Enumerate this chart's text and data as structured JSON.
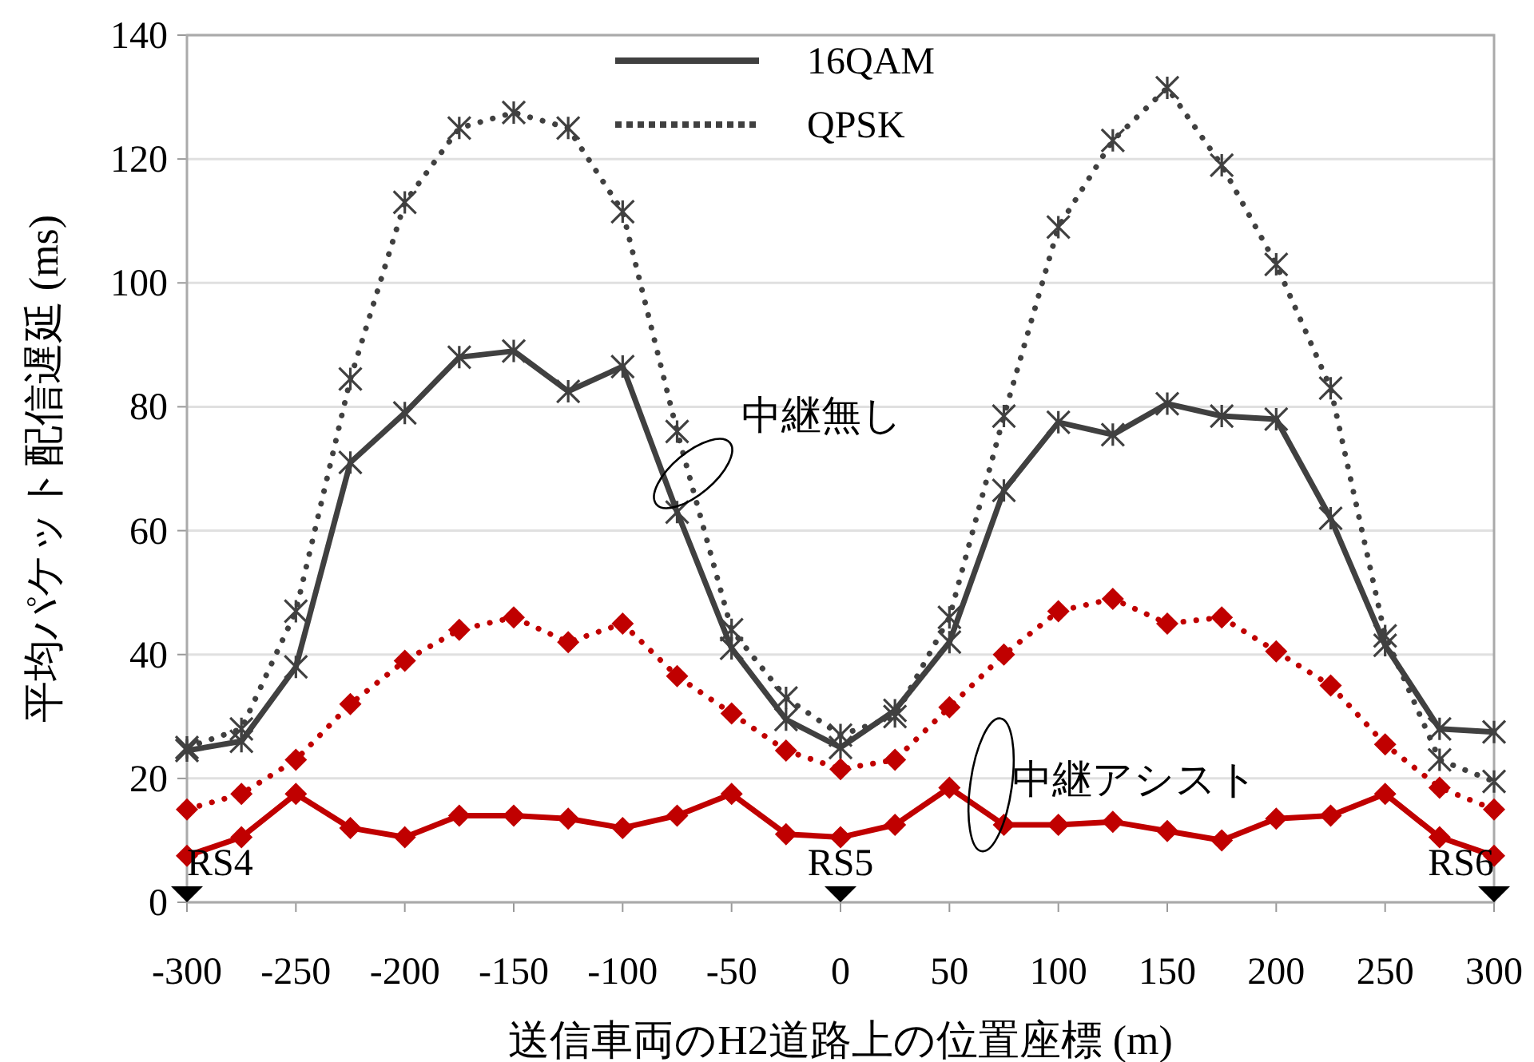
{
  "chart_data": {
    "type": "line",
    "xlabel": "送信車両のH2道路上の位置座標 (m)",
    "ylabel": "平均パケット配信遅延 (ms)",
    "x": [
      -300,
      -275,
      -250,
      -225,
      -200,
      -175,
      -150,
      -125,
      -100,
      -75,
      -50,
      -25,
      0,
      25,
      50,
      75,
      100,
      125,
      150,
      175,
      200,
      225,
      250,
      275,
      300
    ],
    "series": [
      {
        "name": "16QAM",
        "color": "#404040",
        "line_style": "solid",
        "marker": "cross",
        "values": [
          24.5,
          26,
          38,
          71,
          79,
          88,
          89,
          82.5,
          86.5,
          63,
          41,
          29.5,
          25,
          31,
          42,
          66.5,
          77.5,
          75.5,
          80.5,
          78.5,
          78,
          62,
          41.5,
          28,
          27.5
        ]
      },
      {
        "name": "QPSK",
        "color": "#404040",
        "line_style": "dotted",
        "marker": "cross",
        "values": [
          25,
          28,
          47,
          84.5,
          113,
          125,
          127.5,
          125,
          111.5,
          76,
          44,
          33,
          27,
          30,
          46,
          78.5,
          109,
          123,
          131.5,
          119,
          103,
          83,
          43,
          23,
          19.5
        ]
      },
      {
        "color": "#c00000",
        "line_style": "solid",
        "marker": "diamond",
        "values": [
          7.5,
          10.5,
          17.5,
          12,
          10.5,
          14,
          14,
          13.5,
          12,
          14,
          17.5,
          11,
          10.5,
          12.5,
          18.5,
          12.5,
          12.5,
          13,
          11.5,
          10,
          13.5,
          14,
          17.5,
          10.5,
          7.5
        ]
      },
      {
        "color": "#c00000",
        "line_style": "dotted",
        "marker": "diamond",
        "values": [
          15,
          17.5,
          23,
          32,
          39,
          44,
          46,
          42,
          45,
          36.5,
          30.5,
          24.5,
          21.5,
          23,
          31.5,
          40,
          47,
          49,
          45,
          46,
          40.5,
          35,
          25.5,
          18.5,
          15
        ]
      }
    ],
    "xlim": [
      -300,
      300
    ],
    "xticks": [
      -300,
      -250,
      -200,
      -150,
      -100,
      -50,
      0,
      50,
      100,
      150,
      200,
      250,
      300
    ],
    "ylim": [
      0,
      140
    ],
    "yticks": [
      0,
      20,
      40,
      60,
      80,
      100,
      120,
      140
    ],
    "grid": "y",
    "legend": "top",
    "annotations": [
      "中継無し",
      "中継アシスト",
      "RS4",
      "RS5",
      "RS6"
    ]
  }
}
